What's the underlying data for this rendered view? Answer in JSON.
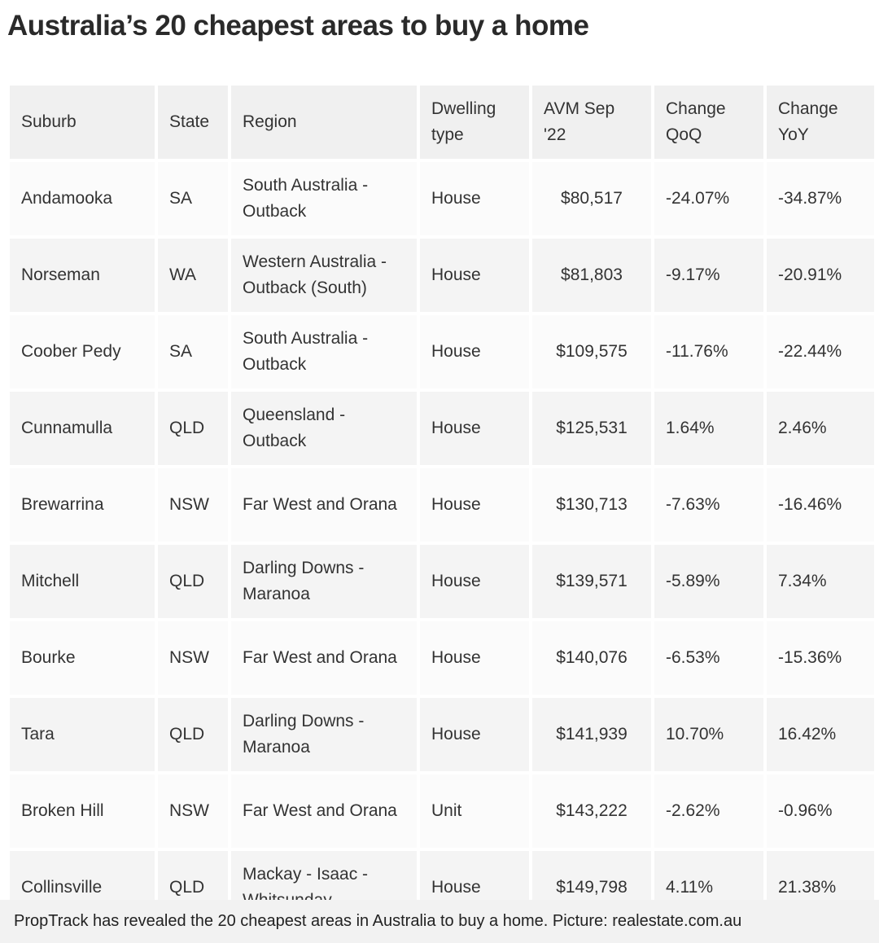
{
  "title": "Australia’s 20 cheapest areas to buy a home",
  "table": {
    "headers": [
      "Suburb",
      "State",
      "Region",
      "Dwelling type",
      "AVM Sep '22",
      "Change QoQ",
      "Change YoY"
    ],
    "rows": [
      [
        "Andamooka",
        "SA",
        "South Australia - Outback",
        "House",
        "$80,517",
        "-24.07%",
        "-34.87%"
      ],
      [
        "Norseman",
        "WA",
        "Western Australia - Outback (South)",
        "House",
        "$81,803",
        "-9.17%",
        "-20.91%"
      ],
      [
        "Coober Pedy",
        "SA",
        "South Australia - Outback",
        "House",
        "$109,575",
        "-11.76%",
        "-22.44%"
      ],
      [
        "Cunnamulla",
        "QLD",
        "Queensland - Outback",
        "House",
        "$125,531",
        "1.64%",
        "2.46%"
      ],
      [
        "Brewarrina",
        "NSW",
        "Far West and Orana",
        "House",
        "$130,713",
        "-7.63%",
        "-16.46%"
      ],
      [
        "Mitchell",
        "QLD",
        "Darling Downs - Maranoa",
        "House",
        "$139,571",
        "-5.89%",
        "7.34%"
      ],
      [
        "Bourke",
        "NSW",
        "Far West and Orana",
        "House",
        "$140,076",
        "-6.53%",
        "-15.36%"
      ],
      [
        "Tara",
        "QLD",
        "Darling Downs - Maranoa",
        "House",
        "$141,939",
        "10.70%",
        "16.42%"
      ],
      [
        "Broken Hill",
        "NSW",
        "Far West and Orana",
        "Unit",
        "$143,222",
        "-2.62%",
        "-0.96%"
      ],
      [
        "Collinsville",
        "QLD",
        "Mackay - Isaac - Whitsunday",
        "House",
        "$149,798",
        "4.11%",
        "21.38%"
      ]
    ]
  },
  "caption": "PropTrack has revealed the 20 cheapest areas in Australia to buy a home. Picture: realestate.com.au"
}
